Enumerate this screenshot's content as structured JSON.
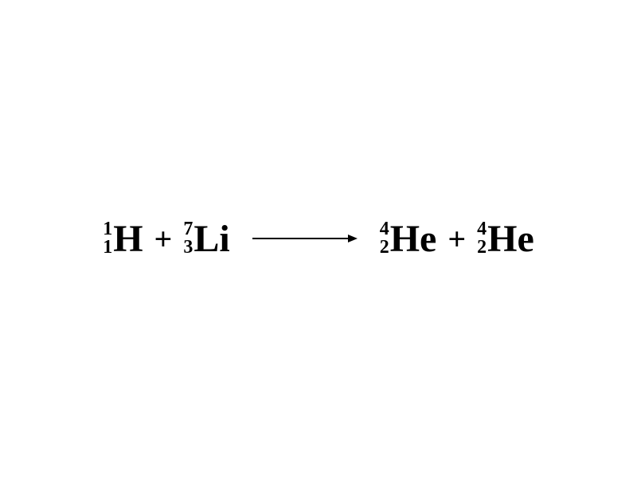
{
  "equation": {
    "type": "nuclear-reaction",
    "background_color": "#ffffff",
    "text_color": "#000000",
    "font_family": "Times New Roman",
    "symbol_fontsize": 48,
    "script_fontsize": 24,
    "operator_fontsize": 40,
    "font_weight": "bold",
    "arrow": {
      "width": 120,
      "thickness": 2,
      "head_size": 8,
      "color": "#000000"
    },
    "reactants": [
      {
        "mass_number": "1",
        "atomic_number": "1",
        "symbol": "H"
      },
      {
        "mass_number": "7",
        "atomic_number": "3",
        "symbol": "Li"
      }
    ],
    "products": [
      {
        "mass_number": "4",
        "atomic_number": "2",
        "symbol": "He"
      },
      {
        "mass_number": "4",
        "atomic_number": "2",
        "symbol": "He"
      }
    ],
    "plus_sign": "+"
  }
}
